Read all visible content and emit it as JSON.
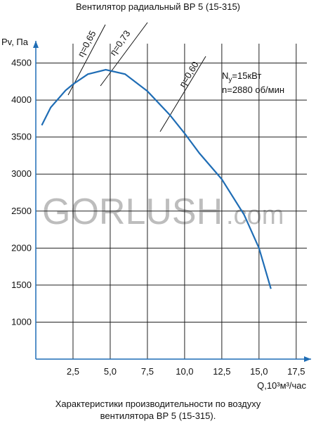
{
  "chart_data": {
    "type": "line",
    "title": "Вентилятор радиальный ВР 5 (15-315)",
    "y_label": "Pv, Па",
    "x_label": "Q,10³м³/час",
    "caption": [
      "Характеристики производительности по воздуху",
      "вентилятора  ВР 5 (15-315)."
    ],
    "watermark": {
      "main": "GORLUSH",
      "suffix": ".com"
    },
    "annotations": {
      "efficiency": [
        "η=0,65",
        "η=0,73",
        "η=0,60"
      ],
      "power": {
        "symbol": "N",
        "subscript": "у",
        "text": "=15кВт"
      },
      "speed": "n=2880 об/мин"
    },
    "x": [
      0.4,
      1,
      2,
      2.5,
      3.5,
      4.7,
      6,
      7.5,
      9,
      10,
      11,
      12.5,
      14,
      15,
      15.8
    ],
    "series": [
      {
        "color": "#1f6db5",
        "values": [
          3660,
          3900,
          4130,
          4214,
          4350,
          4410,
          4350,
          4120,
          3800,
          3550,
          3280,
          2930,
          2450,
          2000,
          1450
        ]
      }
    ],
    "xlim": [
      0,
      18.5
    ],
    "ylim": [
      500,
      4800
    ],
    "xticks": [
      {
        "value": 2.5,
        "label": "2,5"
      },
      {
        "value": 5.0,
        "label": "5,0"
      },
      {
        "value": 7.5,
        "label": "7,5"
      },
      {
        "value": 10.0,
        "label": "10,0"
      },
      {
        "value": 12.5,
        "label": "12,5"
      },
      {
        "value": 15.0,
        "label": "15,0"
      },
      {
        "value": 17.5,
        "label": "17,5"
      }
    ],
    "yticks": [
      1000,
      1500,
      2000,
      2500,
      3000,
      3500,
      4000,
      4500
    ],
    "grid": true
  }
}
